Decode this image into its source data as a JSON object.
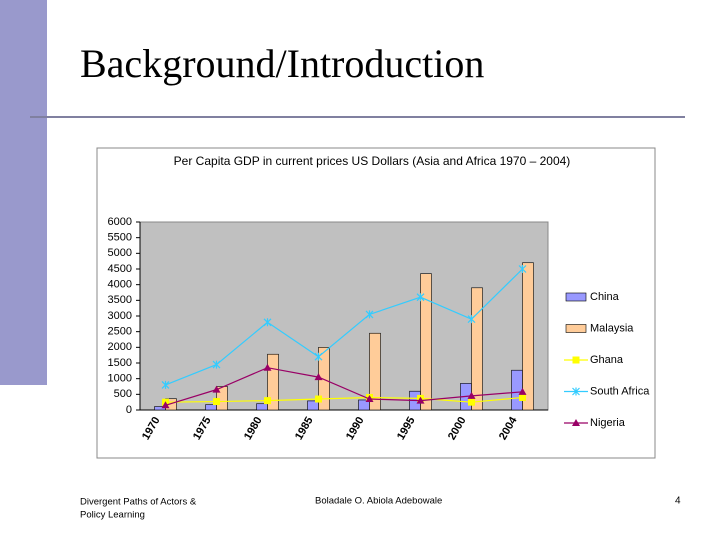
{
  "slide": {
    "title": "Background/Introduction",
    "footer_left": [
      "Divergent Paths of Actors &",
      "Policy Learning"
    ],
    "footer_center": "Boladale O. Abiola Adebowale",
    "page_number": "4"
  },
  "chart_data": {
    "type": "bar",
    "title": "Per Capita GDP in current prices US Dollars (Asia and Africa 1970 – 2004)",
    "categories": [
      "1970",
      "1975",
      "1980",
      "1985",
      "1990",
      "1995",
      "2000",
      "2004"
    ],
    "series": [
      {
        "name": "China",
        "type": "bar",
        "color": "#9999ff",
        "values": [
          110,
          170,
          200,
          290,
          320,
          600,
          850,
          1270
        ]
      },
      {
        "name": "Malaysia",
        "type": "bar",
        "color": "#ffcc99",
        "values": [
          360,
          750,
          1780,
          2000,
          2450,
          4350,
          3900,
          4700
        ]
      },
      {
        "name": "Ghana",
        "type": "line",
        "color": "#ffff00",
        "marker": "square",
        "values": [
          250,
          270,
          300,
          350,
          400,
          370,
          250,
          400
        ]
      },
      {
        "name": "South Africa",
        "type": "line",
        "color": "#33ccff",
        "marker": "star",
        "values": [
          800,
          1450,
          2800,
          1700,
          3050,
          3600,
          2900,
          4500
        ]
      },
      {
        "name": "Nigeria",
        "type": "line",
        "color": "#990066",
        "marker": "triangle",
        "values": [
          150,
          650,
          1350,
          1050,
          350,
          300,
          450,
          580
        ]
      }
    ],
    "ylim": [
      0,
      6000
    ],
    "yticks": [
      0,
      500,
      1000,
      1500,
      2000,
      2500,
      3000,
      3500,
      4000,
      4500,
      5000,
      5500,
      6000
    ],
    "legend": "right"
  }
}
